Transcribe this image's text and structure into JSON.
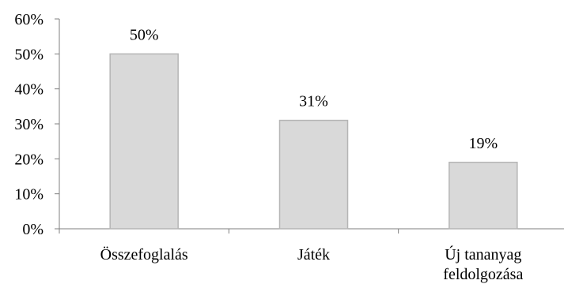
{
  "chart_data": {
    "type": "bar",
    "title": "",
    "xlabel": "",
    "ylabel": "",
    "categories": [
      [
        "Összefoglalás"
      ],
      [
        "Játék"
      ],
      [
        "Új tananyag",
        "feldolgozása"
      ]
    ],
    "values": [
      50,
      31,
      19
    ],
    "data_labels": [
      "50%",
      "31%",
      "19%"
    ],
    "ylim": [
      0,
      60
    ],
    "y_ticks": [
      0,
      10,
      20,
      30,
      40,
      50,
      60
    ],
    "y_tick_labels": [
      "0%",
      "10%",
      "20%",
      "30%",
      "40%",
      "50%",
      "60%"
    ],
    "grid": false,
    "legend": "none",
    "bar_color": "#d9d9d9",
    "bar_border_color": "#b5b5b5",
    "axis_color": "#7f7f7f"
  }
}
